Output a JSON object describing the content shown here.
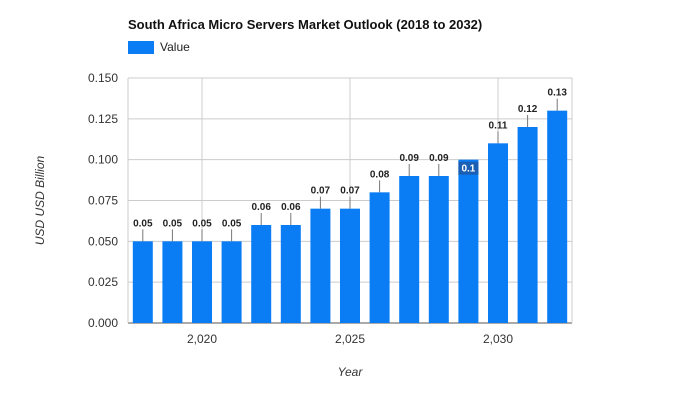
{
  "chart_data": {
    "type": "bar",
    "title": "South Africa Micro Servers Market Outlook (2018 to 2032)",
    "legend": "Value",
    "xlabel": "Year",
    "ylabel": "USD USD Billion",
    "x": [
      2018,
      2019,
      2020,
      2021,
      2022,
      2023,
      2024,
      2025,
      2026,
      2027,
      2028,
      2029,
      2030,
      2031,
      2032
    ],
    "values": [
      0.05,
      0.05,
      0.05,
      0.05,
      0.06,
      0.06,
      0.07,
      0.07,
      0.08,
      0.09,
      0.09,
      0.1,
      0.11,
      0.12,
      0.13
    ],
    "data_labels": [
      "0.05",
      "0.05",
      "0.05",
      "0.05",
      "0.06",
      "0.06",
      "0.07",
      "0.07",
      "0.08",
      "0.09",
      "0.09",
      "0.1",
      "0.11",
      "0.12",
      "0.13"
    ],
    "ylim": [
      0,
      0.15
    ],
    "y_ticks": [
      "0.000",
      "0.025",
      "0.050",
      "0.075",
      "0.100",
      "0.125",
      "0.150"
    ],
    "x_ticks": [
      "2,020",
      "2,025",
      "2,030"
    ],
    "x_tick_values": [
      2020,
      2025,
      2030
    ],
    "bar_color": "#0a7df5",
    "grid": true
  }
}
